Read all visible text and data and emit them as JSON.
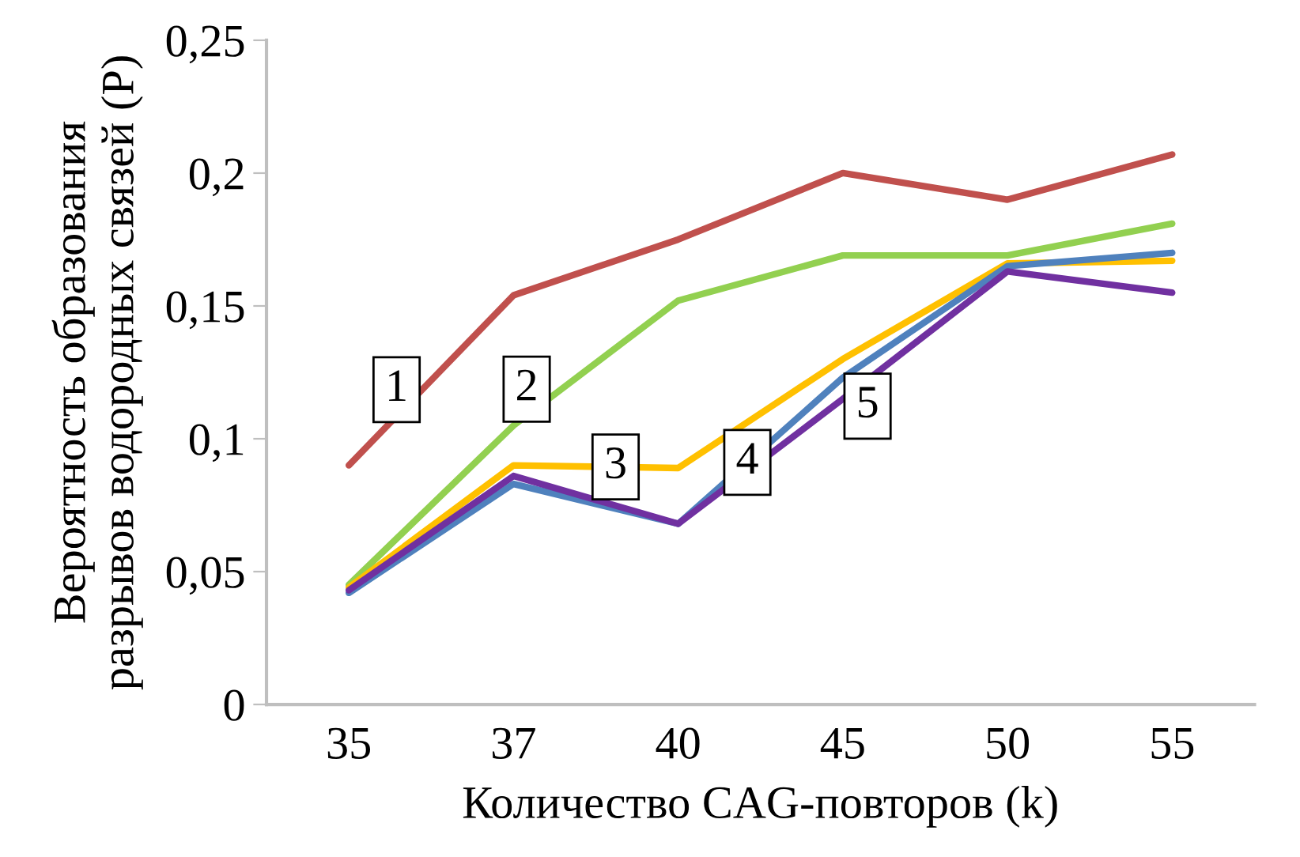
{
  "chart_data": {
    "type": "line",
    "xlabel": "Количество CAG-повторов (k)",
    "ylabel": "Вероятность образования\nразрывов водородных связей (P)",
    "categories": [
      "35",
      "37",
      "40",
      "45",
      "50",
      "55"
    ],
    "series": [
      {
        "name": "1",
        "color": "#c0504d",
        "values": [
          0.09,
          0.154,
          0.175,
          0.2,
          0.19,
          0.207
        ]
      },
      {
        "name": "2",
        "color": "#92d050",
        "values": [
          0.045,
          0.105,
          0.152,
          0.169,
          0.169,
          0.181
        ]
      },
      {
        "name": "3",
        "color": "#ffc000",
        "values": [
          0.044,
          0.09,
          0.089,
          0.13,
          0.166,
          0.167
        ]
      },
      {
        "name": "4",
        "color": "#4f81bd",
        "values": [
          0.042,
          0.083,
          0.068,
          0.123,
          0.165,
          0.17
        ]
      },
      {
        "name": "5",
        "color": "#7030a0",
        "values": [
          0.043,
          0.086,
          0.068,
          0.115,
          0.163,
          0.155
        ]
      }
    ],
    "ylim": [
      0,
      0.25
    ],
    "yticks": [
      {
        "value": 0,
        "label": "0"
      },
      {
        "value": 0.05,
        "label": "0,05"
      },
      {
        "value": 0.1,
        "label": "0,1"
      },
      {
        "value": 0.15,
        "label": "0,15"
      },
      {
        "value": 0.2,
        "label": "0,2"
      },
      {
        "value": 0.25,
        "label": "0,25"
      }
    ],
    "grid": false,
    "legend": false,
    "marker": "none",
    "line_style": "solid"
  }
}
